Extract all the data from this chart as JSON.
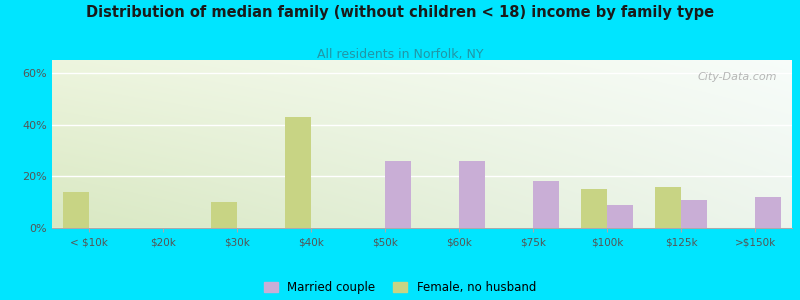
{
  "title": "Distribution of median family (without children < 18) income by family type",
  "subtitle": "All residents in Norfolk, NY",
  "categories": [
    "< $10k",
    "$20k",
    "$30k",
    "$40k",
    "$50k",
    "$60k",
    "$75k",
    "$100k",
    "$125k",
    ">$150k"
  ],
  "married_couple": [
    0,
    0,
    0,
    0,
    26,
    26,
    18,
    9,
    11,
    12
  ],
  "female_no_husband": [
    14,
    0,
    10,
    43,
    0,
    0,
    0,
    15,
    16,
    0
  ],
  "married_color": "#c9aed6",
  "female_color": "#c8d484",
  "background_outer": "#00e5ff",
  "title_color": "#1a1a1a",
  "subtitle_color": "#2196a6",
  "ylabel_ticks": [
    "0%",
    "20%",
    "40%",
    "60%"
  ],
  "ytick_vals": [
    0,
    20,
    40,
    60
  ],
  "ylim": [
    0,
    65
  ],
  "bar_width": 0.35,
  "watermark": "City-Data.com",
  "bg_top_right": "#f5faf8",
  "bg_bottom_left": "#ddeac8"
}
